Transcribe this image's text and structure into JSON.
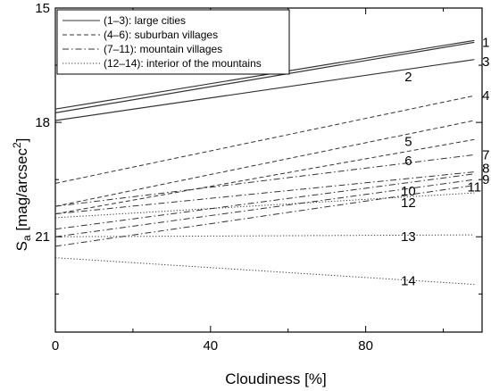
{
  "chart_data": {
    "type": "line",
    "xlabel": "Cloudiness [%]",
    "ylabel_main": "S",
    "ylabel_sub": "a",
    "ylabel_units": " [mag/arcsec",
    "ylabel_sup": "2",
    "ylabel_close": "]",
    "xlim": [
      0,
      110
    ],
    "ylim": [
      23.5,
      15
    ],
    "y_inverted": true,
    "xticks": [
      0,
      40,
      80
    ],
    "xtick_labels": [
      "0",
      "40",
      "80"
    ],
    "yticks": [
      15,
      18,
      21
    ],
    "ytick_labels": [
      "15",
      "18",
      "21"
    ],
    "minor_xticks": [
      20,
      60,
      100
    ],
    "minor_yticks": [
      16.5,
      19.5,
      22.5
    ],
    "grid": false,
    "legend": {
      "placement": "top-left",
      "entries": [
        {
          "label": "(1–3): large cities",
          "dash": "solid"
        },
        {
          "label": "(4–6): suburban villages",
          "dash": "dashed"
        },
        {
          "label": "(7–11): mountain villages",
          "dash": "dashdot"
        },
        {
          "label": "(12–14): interior of the mountains",
          "dash": "dotted"
        }
      ]
    },
    "series": [
      {
        "label": "1",
        "style": "solid",
        "x": [
          0,
          108
        ],
        "y": [
          17.65,
          15.85
        ],
        "label_pos": [
          111,
          15.9
        ]
      },
      {
        "label": "2",
        "style": "solid",
        "x": [
          0,
          108
        ],
        "y": [
          17.75,
          15.9
        ],
        "label_pos": [
          91,
          16.8
        ]
      },
      {
        "label": "3",
        "style": "solid",
        "x": [
          0,
          108
        ],
        "y": [
          17.95,
          16.35
        ],
        "label_pos": [
          111,
          16.4
        ]
      },
      {
        "label": "4",
        "style": "dashed",
        "x": [
          0,
          108
        ],
        "y": [
          19.6,
          17.3
        ],
        "label_pos": [
          111,
          17.3
        ]
      },
      {
        "label": "5",
        "style": "dashed",
        "x": [
          0,
          108
        ],
        "y": [
          20.2,
          17.95
        ],
        "label_pos": [
          91,
          18.5
        ]
      },
      {
        "label": "6",
        "style": "dashed",
        "x": [
          0,
          108
        ],
        "y": [
          20.4,
          18.45
        ],
        "label_pos": [
          91,
          19.0
        ]
      },
      {
        "label": "7",
        "style": "dashdot",
        "x": [
          0,
          108
        ],
        "y": [
          20.2,
          18.85
        ],
        "label_pos": [
          111,
          18.85
        ]
      },
      {
        "label": "8",
        "style": "dashdot",
        "x": [
          0,
          108
        ],
        "y": [
          20.4,
          19.3
        ],
        "label_pos": [
          111,
          19.2
        ]
      },
      {
        "label": "9",
        "style": "dashdot",
        "x": [
          0,
          108
        ],
        "y": [
          20.8,
          19.35
        ],
        "label_pos": [
          111,
          19.5
        ]
      },
      {
        "label": "10",
        "style": "dashdot",
        "x": [
          0,
          108
        ],
        "y": [
          21.0,
          19.5
        ],
        "label_pos": [
          91,
          19.8
        ]
      },
      {
        "label": "11",
        "style": "dashdot",
        "x": [
          0,
          108
        ],
        "y": [
          21.25,
          19.65
        ],
        "label_pos": [
          108,
          19.7
        ]
      },
      {
        "label": "12",
        "style": "dotted",
        "x": [
          0,
          108
        ],
        "y": [
          20.5,
          19.85
        ],
        "label_pos": [
          91,
          20.1
        ]
      },
      {
        "label": "13",
        "style": "dotted",
        "x": [
          0,
          108
        ],
        "y": [
          21.0,
          20.95
        ],
        "label_pos": [
          91,
          21.0
        ]
      },
      {
        "label": "14",
        "style": "dotted",
        "x": [
          0,
          108
        ],
        "y": [
          21.55,
          22.25
        ],
        "label_pos": [
          91,
          22.15
        ]
      }
    ]
  }
}
